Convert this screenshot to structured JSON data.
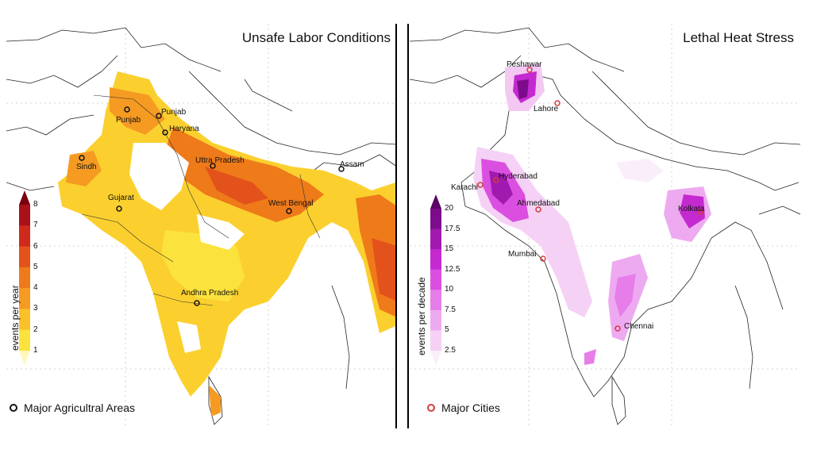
{
  "left_panel": {
    "title": "Unsafe Labor Conditions",
    "colorbar": {
      "label": "events per year",
      "ticks": [
        "1",
        "2",
        "3",
        "4",
        "5",
        "6",
        "7",
        "8"
      ],
      "colors": [
        "#fff7bc",
        "#fce23c",
        "#fbc12b",
        "#f59b22",
        "#ef7a1a",
        "#e4521b",
        "#cf2a1b",
        "#a81117",
        "#7a0010"
      ]
    },
    "legend": "Major Agricultral Areas",
    "places": [
      "Punjab",
      "Punjab",
      "Haryana",
      "Sindh",
      "Uttra Pradesh",
      "Assam",
      "Gujarat",
      "West Bengal",
      "Andhra Pradesh"
    ]
  },
  "right_panel": {
    "title": "Lethal Heat Stress",
    "colorbar": {
      "label": "events per decade",
      "ticks": [
        "2.5",
        "5",
        "7.5",
        "10",
        "12.5",
        "15",
        "17.5",
        "20"
      ],
      "colors": [
        "#fbeefb",
        "#f5d1f5",
        "#eeaaf0",
        "#e67de9",
        "#db4fe0",
        "#c42ad0",
        "#a11ab0",
        "#7d0c8c",
        "#5a0466"
      ]
    },
    "legend": "Major Cities",
    "places": [
      "Peshawar",
      "Lahore",
      "Hyderabad",
      "Karachi",
      "Ahmedabad",
      "Kolkata",
      "Mumbai",
      "Chennai"
    ]
  }
}
